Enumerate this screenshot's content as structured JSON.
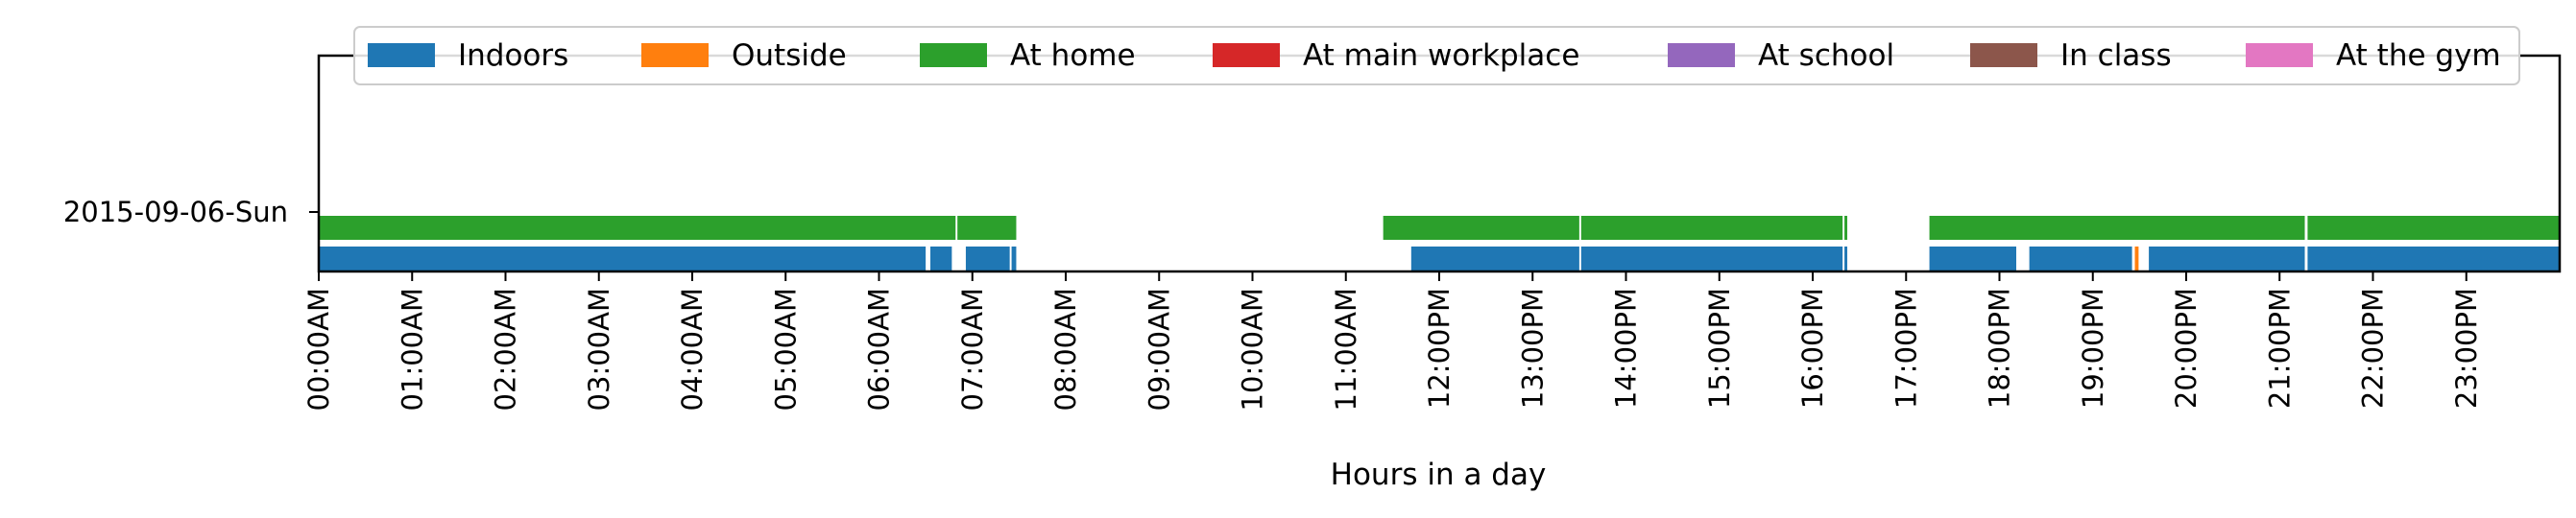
{
  "chart_data": {
    "type": "timeline",
    "xlabel": "Hours in a day",
    "ylabel": "",
    "xlim": [
      0,
      24
    ],
    "grid": false,
    "legend_position": "top-center",
    "date_label": "2015-09-06-Sun",
    "x_ticks": [
      "00:00AM",
      "01:00AM",
      "02:00AM",
      "03:00AM",
      "04:00AM",
      "05:00AM",
      "06:00AM",
      "07:00AM",
      "08:00AM",
      "09:00AM",
      "10:00AM",
      "11:00AM",
      "12:00PM",
      "13:00PM",
      "14:00PM",
      "15:00PM",
      "16:00PM",
      "17:00PM",
      "18:00PM",
      "19:00PM",
      "20:00PM",
      "21:00PM",
      "22:00PM",
      "23:00PM"
    ],
    "series": [
      {
        "name": "Indoors",
        "color": "#1f77b4"
      },
      {
        "name": "Outside",
        "color": "#ff7f0e"
      },
      {
        "name": "At home",
        "color": "#2ca02c"
      },
      {
        "name": "At main workplace",
        "color": "#d62728"
      },
      {
        "name": "At school",
        "color": "#9467bd"
      },
      {
        "name": "In class",
        "color": "#8c564b"
      },
      {
        "name": "At the gym",
        "color": "#e377c2"
      }
    ],
    "segments": [
      {
        "series": "At home",
        "row": "upper",
        "start": 0.0,
        "end": 6.82
      },
      {
        "series": "At home",
        "row": "upper",
        "start": 6.84,
        "end": 7.47
      },
      {
        "series": "At home",
        "row": "upper",
        "start": 11.4,
        "end": 13.5
      },
      {
        "series": "At home",
        "row": "upper",
        "start": 13.52,
        "end": 16.32
      },
      {
        "series": "At home",
        "row": "upper",
        "start": 16.34,
        "end": 16.37
      },
      {
        "series": "At home",
        "row": "upper",
        "start": 17.25,
        "end": 21.27
      },
      {
        "series": "At home",
        "row": "upper",
        "start": 21.3,
        "end": 24.0
      },
      {
        "series": "Indoors",
        "row": "lower",
        "start": 0.0,
        "end": 6.5
      },
      {
        "series": "Indoors",
        "row": "lower",
        "start": 6.55,
        "end": 6.78
      },
      {
        "series": "Indoors",
        "row": "lower",
        "start": 6.93,
        "end": 7.4
      },
      {
        "series": "Indoors",
        "row": "lower",
        "start": 7.42,
        "end": 7.47
      },
      {
        "series": "Indoors",
        "row": "lower",
        "start": 11.7,
        "end": 13.5
      },
      {
        "series": "Indoors",
        "row": "lower",
        "start": 13.52,
        "end": 16.32
      },
      {
        "series": "Indoors",
        "row": "lower",
        "start": 16.34,
        "end": 16.37
      },
      {
        "series": "Indoors",
        "row": "lower",
        "start": 17.25,
        "end": 18.18
      },
      {
        "series": "Indoors",
        "row": "lower",
        "start": 18.32,
        "end": 19.42
      },
      {
        "series": "Indoors",
        "row": "lower",
        "start": 19.6,
        "end": 21.27
      },
      {
        "series": "Indoors",
        "row": "lower",
        "start": 21.3,
        "end": 24.0
      },
      {
        "series": "Outside",
        "row": "lower",
        "start": 19.45,
        "end": 19.49
      }
    ]
  }
}
